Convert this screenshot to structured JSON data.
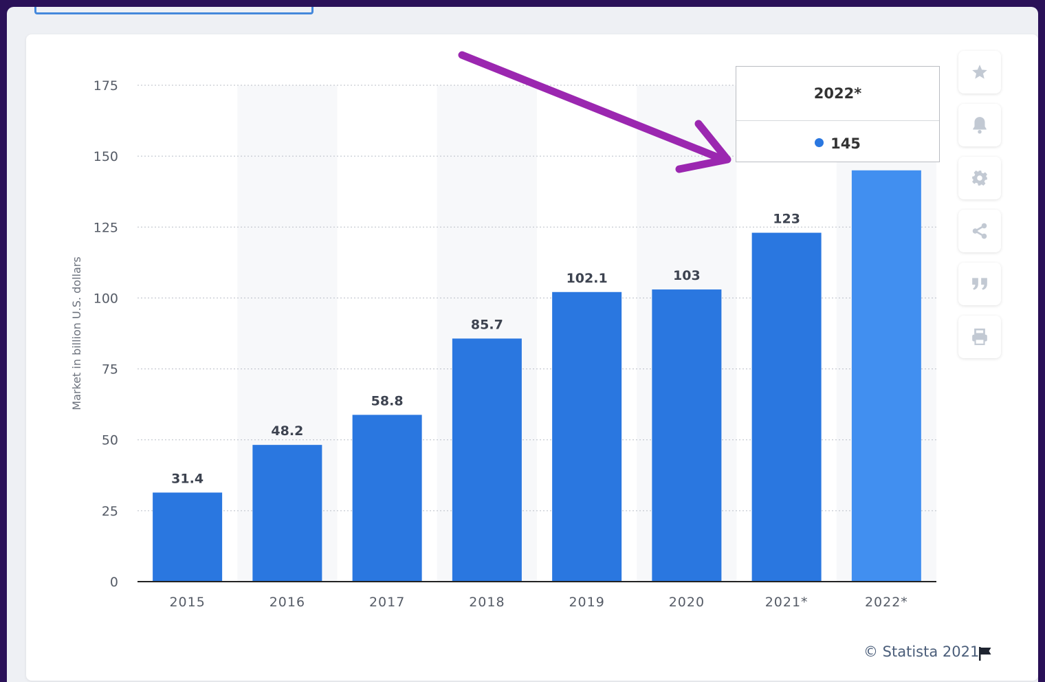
{
  "chart_data": {
    "type": "bar",
    "categories": [
      "2015",
      "2016",
      "2017",
      "2018",
      "2019",
      "2020",
      "2021*",
      "2022*"
    ],
    "values": [
      31.4,
      48.2,
      58.8,
      85.7,
      102.1,
      103,
      123,
      145
    ],
    "value_labels": [
      "31.4",
      "48.2",
      "58.8",
      "85.7",
      "102.1",
      "103",
      "123",
      ""
    ],
    "title": "",
    "xlabel": "",
    "ylabel": "Market in billion U.S. dollars",
    "ylim": [
      0,
      175
    ],
    "yticks": [
      "0",
      "25",
      "50",
      "75",
      "100",
      "125",
      "150",
      "175"
    ],
    "grid": true,
    "bar_color": "#2a77e0",
    "highlight_color": "#418ff0",
    "highlighted_index": 7
  },
  "tooltip": {
    "title": "2022*",
    "value": "145"
  },
  "annotation": {
    "arrow_color": "#9b27b0"
  },
  "sidebar": {
    "buttons": [
      "star-icon",
      "bell-icon",
      "gear-icon",
      "share-icon",
      "quote-icon",
      "print-icon"
    ]
  },
  "footer": {
    "credit": "© Statista 2021"
  }
}
